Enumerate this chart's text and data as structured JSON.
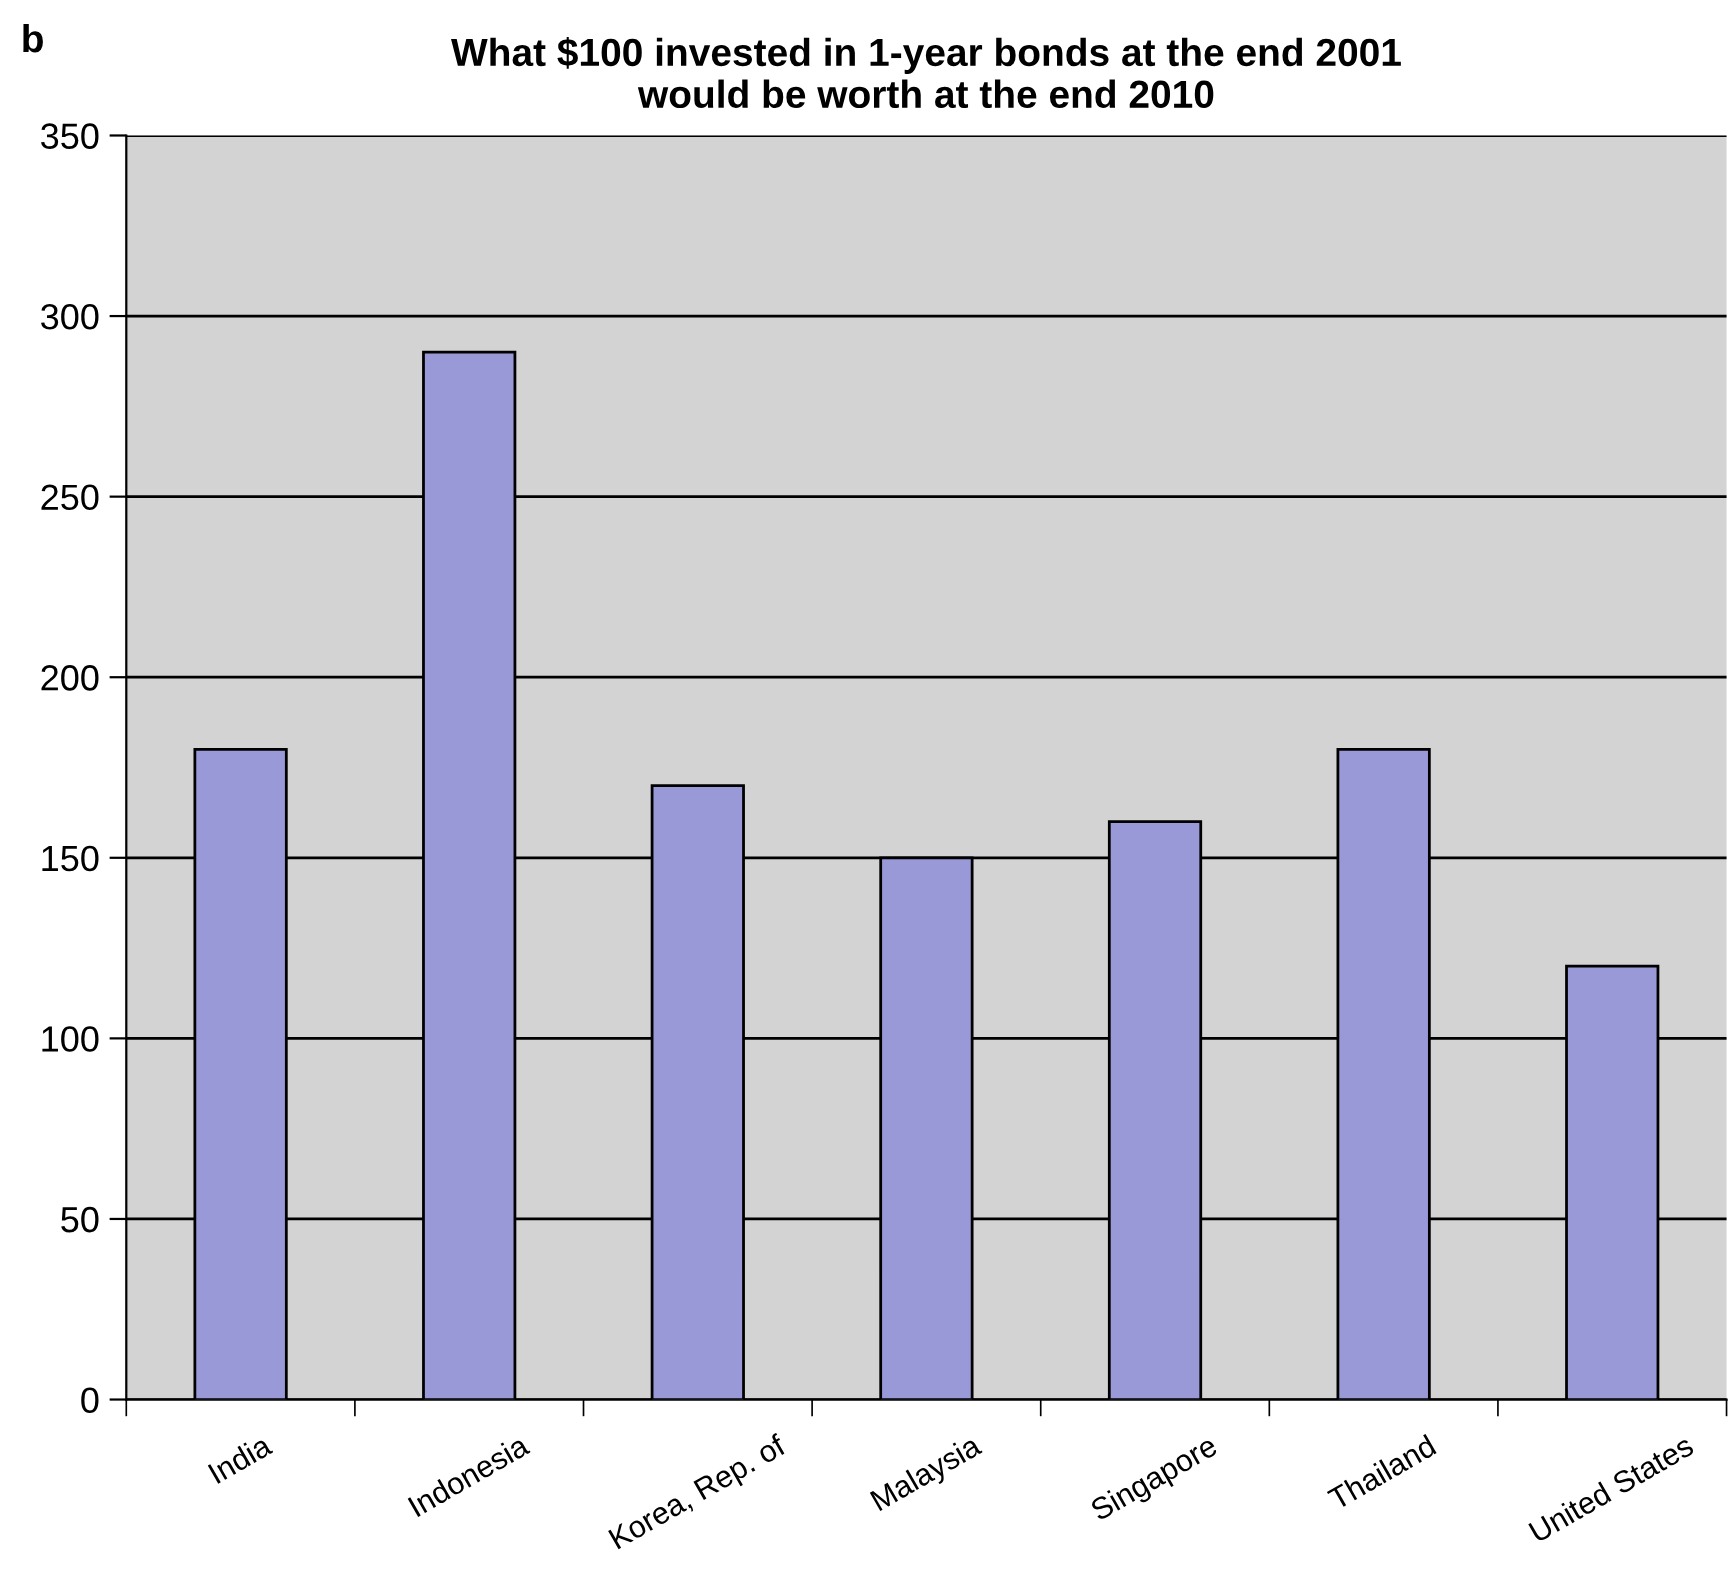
{
  "chart_data": {
    "type": "bar",
    "title": "What $100 invested in 1-year bonds at the end 2001\nwould be worth at the end 2010",
    "categories": [
      "India",
      "Indonesia",
      "Korea, Rep. of",
      "Malaysia",
      "Singapore",
      "Thailand",
      "United States"
    ],
    "values": [
      180,
      290,
      170,
      150,
      160,
      180,
      120
    ],
    "color": "#9999d8",
    "ylim": [
      0,
      350
    ],
    "yticks": [
      0,
      50,
      100,
      150,
      200,
      250,
      300,
      350
    ],
    "grid": "y",
    "annotations": [
      "b"
    ]
  }
}
